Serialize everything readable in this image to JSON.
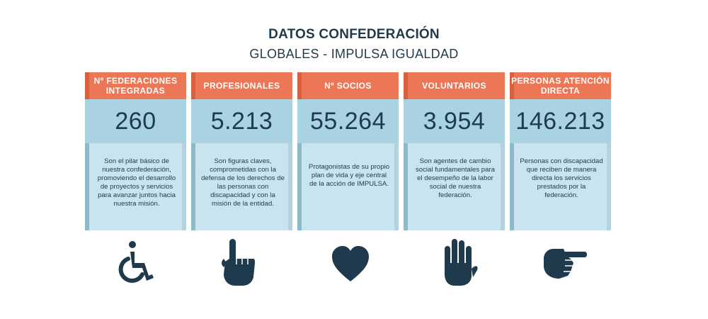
{
  "header": {
    "title": "DATOS CONFEDERACIÓN",
    "subtitle": "GLOBALES - IMPULSA IGUALDAD"
  },
  "colors": {
    "header_orange": "#ec7757",
    "number_band": "#a9d3e0",
    "card_body": "#c9e4ef",
    "text_dark": "#1e3a4c"
  },
  "cards": [
    {
      "label": "Nº FEDERACIONES INTEGRADAS",
      "value": "260",
      "description": "Son el pilar básico de nuestra confederación, promoviendo el desarrollo de proyectos y servicios para avanzar juntos hacia nuestra misión.",
      "icon": "wheelchair-icon"
    },
    {
      "label": "PROFESIONALES",
      "value": "5.213",
      "description": "Son figuras claves, comprometidas con la defensa de los derechos de las personas con discapacidad y con la misión de la entidad.",
      "icon": "pointing-up-hand-icon"
    },
    {
      "label": "Nº SOCIOS",
      "value": "55.264",
      "description": "Protagonistas de su propio plan de vida y eje central de la acción de IMPULSA.",
      "icon": "heart-icon"
    },
    {
      "label": "VOLUNTARIOS",
      "value": "3.954",
      "description": "Son agentes de cambio social fundamentales para el desempeño de la labor social de nuestra federación.",
      "icon": "raised-hand-icon"
    },
    {
      "label": "PERSONAS ATENCIÓN DIRECTA",
      "value": "146.213",
      "description": "Personas con discapacidad que reciben de manera directa los servicios prestados por la federación.",
      "icon": "pointing-right-hand-icon"
    }
  ]
}
